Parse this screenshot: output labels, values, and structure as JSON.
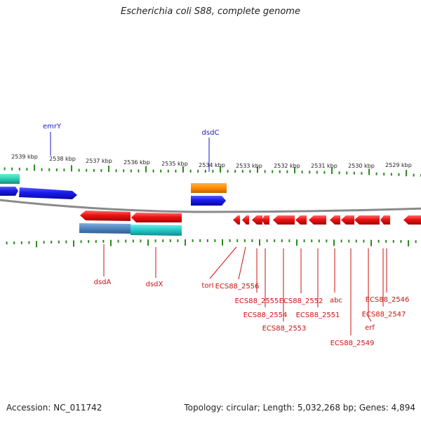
{
  "title": "Escherichia coli S88, complete genome",
  "footer": {
    "accession": "Accession: NC_011742",
    "summary": "Topology: circular; Length: 5,032,268 bp; Genes: 4,894"
  },
  "colors": {
    "forward_gene": "#1a1aee",
    "reverse_gene": "#ee1111",
    "orange_gene": "#ff8c00",
    "teal_gene": "#2ad0b0",
    "steel_gene": "#4f86c0",
    "cyan_gene": "#22c8c8",
    "tick": "#2b8a1e",
    "backbone": "#8a8a8a",
    "upper_label": "#1a1acc",
    "lower_label": "#cc1111"
  },
  "scale_labels": [
    "2539 kbp",
    "2538 kbp",
    "2537 kbp",
    "2536 kbp",
    "2535 kbp",
    "2534 kbp",
    "2533 kbp",
    "2532 kbp",
    "2531 kbp",
    "2530 kbp",
    "2529 kbp"
  ],
  "upper_gene_labels": [
    "emrY",
    "dsdC"
  ],
  "lower_gene_labels": [
    "dsdA",
    "dsdX",
    "torI",
    "ECS88_2556",
    "ECS88_2555",
    "ECS88_2554",
    "ECS88_2553",
    "ECS88_2552",
    "ECS88_2551",
    "abc",
    "ECS88_2549",
    "ECS88_2546",
    "ECS88_2547",
    "erf"
  ]
}
